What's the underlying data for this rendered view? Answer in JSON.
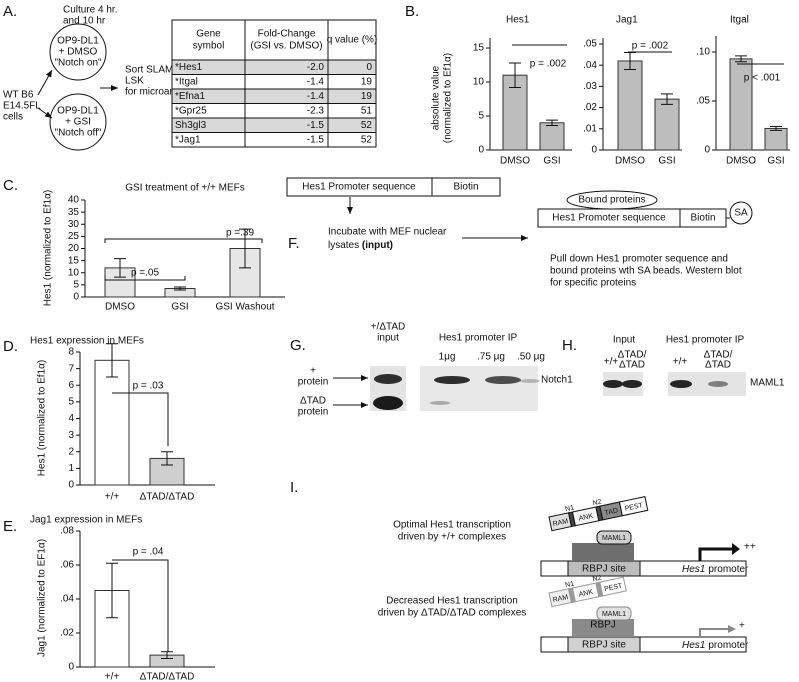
{
  "panel_labels": [
    "A.",
    "B.",
    "C.",
    "D.",
    "E.",
    "F.",
    "G.",
    "H.",
    "I."
  ],
  "panel_a": {
    "cells": [
      "WT B6",
      "E14.5FL",
      "cells"
    ],
    "culture": [
      "Culture 4 hr.",
      "and  10 hr"
    ],
    "notch_on": [
      "OP9-DL1",
      "+ DMSO",
      "\"Notch on\""
    ],
    "notch_off": [
      "OP9-DL1",
      "+ GSI",
      "\"Notch off\""
    ],
    "sort": [
      "Sort SLAM",
      "LSK",
      "for microarray"
    ],
    "table": {
      "header": [
        [
          "Gene",
          "symbol"
        ],
        [
          "Fold-Change",
          "(GSI vs. DMSO)"
        ],
        [
          "q value (%)"
        ]
      ],
      "rows": [
        [
          "*Hes1",
          "-2.0",
          "0"
        ],
        [
          "*Itgal",
          "-1.4",
          "19"
        ],
        [
          "*Efna1",
          "-1.4",
          "19"
        ],
        [
          "*Gpr25",
          "-2.3",
          "51"
        ],
        [
          "Sh3gl3",
          "-1.5",
          "52"
        ],
        [
          "*Jag1",
          "-1.5",
          "52"
        ]
      ]
    }
  },
  "chart_data": [
    {
      "type": "bar",
      "title": "Hes1",
      "ylabel": [
        "absolute value",
        "(normalized to Ef1α)"
      ],
      "categories": [
        "DMSO",
        "GSI"
      ],
      "values": [
        11,
        4
      ],
      "errors": [
        1.8,
        0.4
      ],
      "colors": [
        "#bdbdbd",
        "#bdbdbd"
      ],
      "ylim": [
        0,
        15
      ],
      "yticks": [
        0,
        5,
        10,
        15
      ],
      "annotations": [
        "p = .002"
      ]
    },
    {
      "type": "bar",
      "title": "Jag1",
      "categories": [
        "DMSO",
        "GSI"
      ],
      "values": [
        0.042,
        0.024
      ],
      "errors": [
        0.004,
        0.0025
      ],
      "colors": [
        "#bdbdbd",
        "#bdbdbd"
      ],
      "ylim": [
        0,
        0.05
      ],
      "yticks": [
        0,
        {
          "value": 0.01,
          "label": ".01"
        },
        {
          "value": 0.02,
          "label": ".02"
        },
        {
          "value": 0.03,
          "label": ".03"
        },
        {
          "value": 0.04,
          "label": ".04"
        },
        {
          "value": 0.05,
          "label": ".05"
        }
      ],
      "annotations": [
        "p = .002"
      ]
    },
    {
      "type": "bar",
      "title": "Itgal",
      "categories": [
        "DMSO",
        "GSI"
      ],
      "values": [
        0.093,
        0.022
      ],
      "errors": [
        0.003,
        0.002
      ],
      "colors": [
        "#bdbdbd",
        "#bdbdbd"
      ],
      "ylim": [
        0,
        0.1
      ],
      "yticks": [
        0,
        {
          "value": 0.05,
          "label": ".05"
        },
        {
          "value": 0.1,
          "label": ".10"
        }
      ],
      "annotations": [
        "p < .001"
      ]
    },
    {
      "type": "bar",
      "title": "GSI treatment of +/+ MEFs",
      "ylabel": "Hes1 (normalized to Ef1α)",
      "categories": [
        "DMSO",
        "GSI",
        "GSI Washout"
      ],
      "values": [
        12,
        3.5,
        20
      ],
      "errors": [
        3.8,
        0.6,
        8
      ],
      "colors": [
        "#e6e6e6",
        "#e6e6e6",
        "#e6e6e6"
      ],
      "ylim": [
        0,
        40
      ],
      "yticks": [
        0,
        5,
        10,
        15,
        20,
        25,
        30,
        35,
        40
      ],
      "annotations": [
        "p =.05",
        "p =.39"
      ]
    },
    {
      "type": "bar",
      "title": "Hes1 expression in MEFs",
      "ylabel": "Hes1 (normalized to Ef1α)",
      "categories": [
        "+/+",
        "ΔTAD/ΔTAD"
      ],
      "values": [
        7.5,
        1.6
      ],
      "errors": [
        1,
        0.4
      ],
      "colors": [
        "#ffffff",
        "#cfcfcf"
      ],
      "ylim": [
        0,
        8
      ],
      "yticks": [
        0,
        1,
        2,
        3,
        4,
        5,
        6,
        7,
        8
      ],
      "annotations": [
        "p = .03"
      ]
    },
    {
      "type": "bar",
      "title": "Jag1 expression in MEFs",
      "ylabel": "Jag1 (normalized to EF1α)",
      "categories": [
        "+/+",
        "ΔTAD/ΔTAD"
      ],
      "values": [
        0.045,
        0.007
      ],
      "errors": [
        0.016,
        0.002
      ],
      "colors": [
        "#ffffff",
        "#cfcfcf"
      ],
      "ylim": [
        0,
        0.08
      ],
      "yticks": [
        0,
        {
          "value": 0.02,
          "label": ".02"
        },
        {
          "value": 0.04,
          "label": ".04"
        },
        {
          "value": 0.06,
          "label": ".06"
        },
        {
          "value": 0.08,
          "label": ".08"
        }
      ],
      "annotations": [
        "p = .04"
      ]
    }
  ],
  "panel_f": {
    "promoter": "Hes1 Promoter sequence",
    "biotin": "Biotin",
    "incubate": "Incubate with MEF nuclear",
    "lysates": "lysates ",
    "input": "(input)",
    "bound": "Bound proteins",
    "sa": "SA",
    "pull_down": [
      "Pull down Hes1 promoter sequence and",
      "bound proteins wth SA beads. Western blot",
      "for specific proteins"
    ]
  },
  "panel_g": {
    "input_header": [
      "+/ΔTAD",
      "input"
    ],
    "ip_header": "Hes1 promoter IP",
    "lanes": [
      "1μg",
      ".75 μg",
      ".50 μg"
    ],
    "plus_protein": [
      "+",
      "protein"
    ],
    "dtad_protein": [
      "ΔTAD",
      "protein"
    ],
    "band": "Notch1"
  },
  "panel_h": {
    "input_header": "Input",
    "ip_header": "Hes1 promoter IP",
    "lanes": [
      [
        "+/+"
      ],
      [
        "ΔTAD/",
        "ΔTAD"
      ],
      [
        "+/+"
      ],
      [
        "ΔTAD/",
        "ΔTAD"
      ]
    ],
    "band": "MAML1"
  },
  "panel_i": {
    "optimal": [
      "Optimal Hes1 transcription",
      "driven by +/+ complexes"
    ],
    "decreased": [
      "Decreased Hes1 transcription",
      "driven by ΔTAD/ΔTAD complexes"
    ],
    "ram": "RAM",
    "ank": "ANK",
    "tad": "TAD",
    "pest": "PEST",
    "n1": "N1",
    "n2": "N2",
    "maml1": "MAML1",
    "rbpj": "RBPJ",
    "site": "RBPJ site",
    "gene": "Hes1",
    "promoter": "promoter",
    "strong": "++",
    "weak": "+"
  }
}
